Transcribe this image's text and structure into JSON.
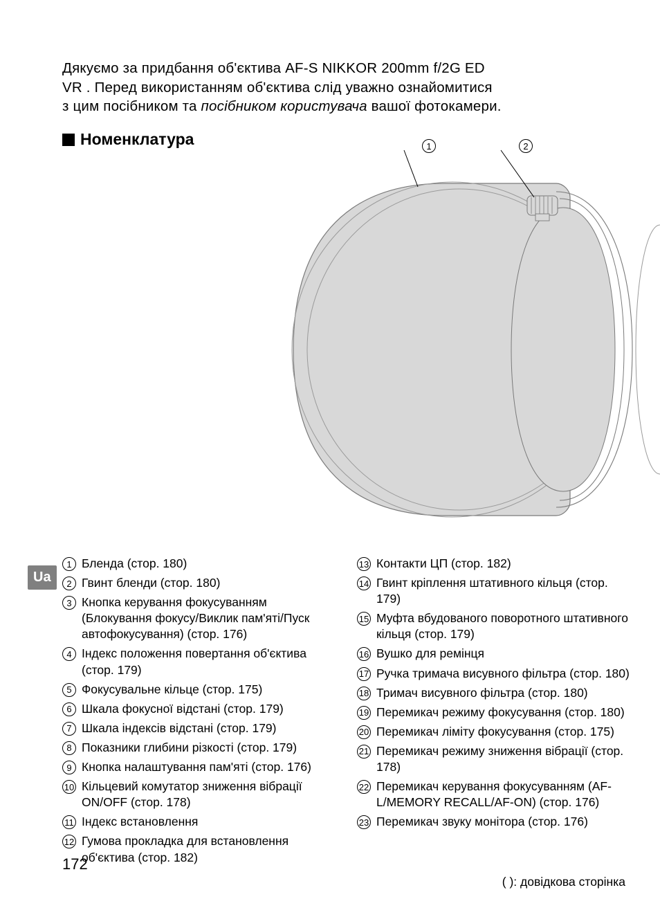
{
  "intro": {
    "line1_a": "Дякуємо за придбання об'єктива AF-S NIKKOR 200mm f/2G ED",
    "line1_b": "VR",
    "line2_a": ". Перед використанням об'єктива слід уважно ознайомитися",
    "line3_a": "з цим посібником та ",
    "line3_italic": "посібником користувача",
    "line3_b": " вашої фотокамери."
  },
  "heading": "Номенклатура",
  "sidebar": "Ua",
  "callouts": {
    "c1": "1",
    "c2": "2"
  },
  "items_left": [
    {
      "n": "1",
      "t": "Бленда (стор. 180)"
    },
    {
      "n": "2",
      "t": "Гвинт бленди (стор. 180)"
    },
    {
      "n": "3",
      "t": "Кнопка керування фокусуванням (Блокування фокусу/Виклик пам'яті/Пуск автофокусування) (стор. 176)"
    },
    {
      "n": "4",
      "t": "Індекс положення повертання об'єктива (стор. 179)"
    },
    {
      "n": "5",
      "t": "Фокусувальне кільце (стор. 175)"
    },
    {
      "n": "6",
      "t": "Шкала фокусної відстані (стор. 179)"
    },
    {
      "n": "7",
      "t": "Шкала індексів відстані (стор. 179)"
    },
    {
      "n": "8",
      "t": "Показники глибини різкості (стор. 179)"
    },
    {
      "n": "9",
      "t": "Кнопка налаштування пам'яті (стор. 176)"
    },
    {
      "n": "10",
      "t": "Кільцевий комутатор зниження вібрації ON/OFF (стор. 178)"
    },
    {
      "n": "11",
      "t": "Індекс встановлення"
    },
    {
      "n": "12",
      "t": "Гумова прокладка для встановлення об'єктива (стор. 182)"
    }
  ],
  "items_right": [
    {
      "n": "13",
      "t": "Контакти ЦП (стор. 182)"
    },
    {
      "n": "14",
      "t": "Гвинт кріплення штативного кільця (стор. 179)"
    },
    {
      "n": "15",
      "t": "Муфта вбудованого поворотного штативного кільця (стор. 179)"
    },
    {
      "n": "16",
      "t": "Вушко для ремінця"
    },
    {
      "n": "17",
      "t": "Ручка тримача висувного фільтра (стор. 180)"
    },
    {
      "n": "18",
      "t": "Тримач висувного фільтра (стор. 180)"
    },
    {
      "n": "19",
      "t": "Перемикач режиму фокусування (стор. 180)"
    },
    {
      "n": "20",
      "t": "Перемикач ліміту фокусування (стор. 175)"
    },
    {
      "n": "21",
      "t": "Перемикач режиму зниження вібрації (стор. 178)"
    },
    {
      "n": "22",
      "t": "Перемикач керування фокусуванням (AF-L/MEMORY RECALL/AF-ON) (стор. 176)"
    },
    {
      "n": "23",
      "t": "Перемикач звуку монітора (стор. 176)"
    }
  ],
  "footnote": "(  ): довідкова сторінка",
  "page_number": "172",
  "style": {
    "page_bg": "#ffffff",
    "text_color": "#000000",
    "sidebar_bg": "#808080",
    "sidebar_fg": "#ffffff",
    "diagram_fill": "#d8d8d8",
    "diagram_stroke": "#7a7a7a",
    "intro_fontsize": 20.5,
    "heading_fontsize": 23,
    "item_fontsize": 17.5,
    "circle_num_fontsize": 13,
    "pagenum_fontsize": 22
  }
}
